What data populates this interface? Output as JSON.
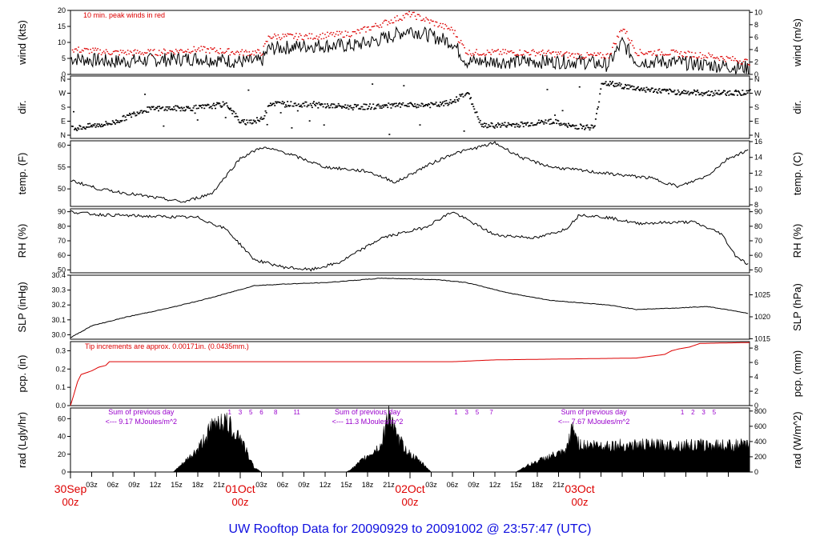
{
  "footer_title": "UW Rooftop Data for 20090929  to  20091002 @ 23:57:47  (UTC)",
  "colors": {
    "accent_red": "#dd0000",
    "footer_blue": "#1010e0",
    "annot_purple": "#9900cc",
    "ink": "#000000"
  },
  "chart_data": [
    {
      "type": "line",
      "key": "wind",
      "ylabel_left": "wind (kts)",
      "ylabel_right": "wind (m/s)",
      "ylim": [
        0,
        20
      ],
      "yticks_left": [
        "0",
        "5",
        "10",
        "15",
        "20"
      ],
      "ylim_right": [
        0,
        10.3
      ],
      "yticks_right": [
        "0",
        "2",
        "4",
        "6",
        "8",
        "10"
      ],
      "annotation": "10 min. peak winds in red",
      "series": [
        {
          "values_hours": [
            [
              0,
              5
            ],
            [
              6,
              4
            ],
            [
              12,
              4.5
            ],
            [
              18,
              5
            ],
            [
              24,
              4
            ],
            [
              27,
              4
            ],
            [
              28,
              8
            ],
            [
              34,
              9
            ],
            [
              40,
              9
            ],
            [
              44,
              11
            ],
            [
              48,
              14
            ],
            [
              54,
              10
            ],
            [
              56,
              4
            ],
            [
              60,
              4
            ],
            [
              66,
              4
            ],
            [
              72,
              4
            ],
            [
              76,
              3
            ],
            [
              78,
              10
            ],
            [
              80,
              4
            ],
            [
              84,
              4
            ],
            [
              90,
              3
            ],
            [
              96,
              2
            ]
          ]
        },
        {
          "peak_hours": [
            [
              0,
              8
            ],
            [
              6,
              7
            ],
            [
              12,
              7
            ],
            [
              18,
              8
            ],
            [
              24,
              7
            ],
            [
              27,
              7
            ],
            [
              28,
              12
            ],
            [
              34,
              12
            ],
            [
              40,
              13
            ],
            [
              44,
              16
            ],
            [
              48,
              19
            ],
            [
              54,
              14
            ],
            [
              56,
              7
            ],
            [
              60,
              7
            ],
            [
              66,
              7
            ],
            [
              72,
              6
            ],
            [
              76,
              6
            ],
            [
              78,
              15
            ],
            [
              80,
              7
            ],
            [
              84,
              7
            ],
            [
              90,
              6
            ],
            [
              96,
              4
            ]
          ]
        }
      ]
    },
    {
      "type": "scatter",
      "key": "dir",
      "ylabel_left": "dir.",
      "ylabel_right": "dir.",
      "yticks": [
        "N",
        "W",
        "S",
        "E",
        "N"
      ],
      "points_hours_deg": [
        [
          0,
          40
        ],
        [
          6,
          80
        ],
        [
          10,
          160
        ],
        [
          12,
          170
        ],
        [
          18,
          175
        ],
        [
          22,
          200
        ],
        [
          24,
          80
        ],
        [
          27,
          100
        ],
        [
          28,
          205
        ],
        [
          34,
          195
        ],
        [
          40,
          180
        ],
        [
          46,
          190
        ],
        [
          52,
          195
        ],
        [
          54,
          215
        ],
        [
          56,
          280
        ],
        [
          58,
          60
        ],
        [
          64,
          70
        ],
        [
          68,
          90
        ],
        [
          70,
          60
        ],
        [
          74,
          50
        ],
        [
          75,
          340
        ],
        [
          80,
          300
        ],
        [
          84,
          280
        ],
        [
          90,
          270
        ],
        [
          96,
          275
        ]
      ]
    },
    {
      "type": "line",
      "key": "temp",
      "ylabel_left": "temp. (F)",
      "ylabel_right": "temp. (C)",
      "ylim": [
        46,
        61
      ],
      "yticks_left": [
        "50",
        "55",
        "60"
      ],
      "ylim_right": [
        7.8,
        16.1
      ],
      "yticks_right": [
        "8",
        "10",
        "12",
        "14",
        "16"
      ],
      "values_hours": [
        [
          0,
          52
        ],
        [
          4,
          50
        ],
        [
          10,
          48.5
        ],
        [
          16,
          47
        ],
        [
          20,
          49
        ],
        [
          22,
          53
        ],
        [
          24,
          57
        ],
        [
          27,
          59.5
        ],
        [
          30,
          58.5
        ],
        [
          36,
          55
        ],
        [
          42,
          54
        ],
        [
          46,
          51.5
        ],
        [
          50,
          55
        ],
        [
          54,
          58
        ],
        [
          60,
          60.5
        ],
        [
          64,
          57
        ],
        [
          68,
          55
        ],
        [
          76,
          53.5
        ],
        [
          82,
          52.5
        ],
        [
          86,
          50.5
        ],
        [
          90,
          53
        ],
        [
          93,
          57
        ],
        [
          96,
          59
        ]
      ]
    },
    {
      "type": "line",
      "key": "rh",
      "ylabel_left": "RH (%)",
      "ylabel_right": "RH (%)",
      "ylim": [
        48,
        92
      ],
      "yticks": [
        "50",
        "60",
        "70",
        "80",
        "90"
      ],
      "values_hours": [
        [
          0,
          90
        ],
        [
          4,
          88
        ],
        [
          10,
          87
        ],
        [
          18,
          86
        ],
        [
          22,
          78
        ],
        [
          26,
          57
        ],
        [
          30,
          52
        ],
        [
          34,
          50
        ],
        [
          38,
          55
        ],
        [
          44,
          72
        ],
        [
          50,
          79
        ],
        [
          54,
          90
        ],
        [
          60,
          74
        ],
        [
          66,
          72
        ],
        [
          70,
          78
        ],
        [
          72,
          88
        ],
        [
          76,
          86
        ],
        [
          80,
          82
        ],
        [
          88,
          83
        ],
        [
          92,
          75
        ],
        [
          94,
          60
        ],
        [
          96,
          53
        ]
      ]
    },
    {
      "type": "line",
      "key": "slp",
      "ylabel_left": "SLP (inHg)",
      "ylabel_right": "SLP (hPa)",
      "ylim": [
        29.97,
        30.4
      ],
      "yticks_left": [
        "30.0",
        "30.1",
        "30.2",
        "30.3",
        "30.4"
      ],
      "yticks_right": [
        "1015",
        "1020",
        "1025"
      ],
      "values_hours": [
        [
          0,
          29.98
        ],
        [
          3,
          30.06
        ],
        [
          8,
          30.12
        ],
        [
          14,
          30.18
        ],
        [
          20,
          30.25
        ],
        [
          26,
          30.33
        ],
        [
          30,
          30.34
        ],
        [
          36,
          30.35
        ],
        [
          44,
          30.38
        ],
        [
          52,
          30.37
        ],
        [
          56,
          30.35
        ],
        [
          62,
          30.28
        ],
        [
          68,
          30.23
        ],
        [
          76,
          30.2
        ],
        [
          80,
          30.17
        ],
        [
          86,
          30.18
        ],
        [
          90,
          30.19
        ],
        [
          94,
          30.16
        ],
        [
          96,
          30.14
        ]
      ]
    },
    {
      "type": "line",
      "key": "pcp",
      "ylabel_left": "pcp. (in)",
      "ylabel_right": "pcp. (mm)",
      "ylim": [
        0,
        0.35
      ],
      "yticks_left": [
        "0.0",
        "0.1",
        "0.2",
        "0.3"
      ],
      "ylim_right": [
        0,
        8.9
      ],
      "yticks_right": [
        "0",
        "2",
        "4",
        "6",
        "8"
      ],
      "annotation": "Tip increments are approx. 0.00171in. (0.0435mm.)",
      "values_hours": [
        [
          0,
          0
        ],
        [
          0.4,
          0.05
        ],
        [
          1,
          0.13
        ],
        [
          1.5,
          0.17
        ],
        [
          3,
          0.19
        ],
        [
          4,
          0.21
        ],
        [
          5,
          0.22
        ],
        [
          5.5,
          0.24
        ],
        [
          36,
          0.24
        ],
        [
          54,
          0.24
        ],
        [
          60,
          0.25
        ],
        [
          80,
          0.26
        ],
        [
          84,
          0.28
        ],
        [
          85,
          0.3
        ],
        [
          86,
          0.31
        ],
        [
          87.5,
          0.32
        ],
        [
          89,
          0.34
        ],
        [
          96,
          0.345
        ]
      ]
    },
    {
      "type": "area",
      "key": "rad",
      "ylabel_left": "rad (Lgly/hr)",
      "ylabel_right": "rad (W/m^2)",
      "ylim": [
        0,
        72
      ],
      "yticks_left": [
        "0",
        "20",
        "40",
        "60"
      ],
      "ylim_right": [
        0,
        840
      ],
      "yticks_right": [
        "0",
        "200",
        "400",
        "600",
        "800"
      ],
      "daily_notes": [
        {
          "line1": "Sum of previous day",
          "line2": "<--- 9.17 MJoules/m^2",
          "hour_labels": [
            "1",
            "3",
            "5",
            "6",
            "8",
            "11"
          ]
        },
        {
          "line1": "Sum of previous day",
          "line2": "<--- 11.3 MJoules/m^2",
          "hour_labels": [
            "1",
            "3",
            "5",
            "7"
          ]
        },
        {
          "line1": "Sum of previous day",
          "line2": "<--- 7.67 MJoules/m^2",
          "hour_labels": [
            "1",
            "2",
            "3",
            "5"
          ]
        }
      ],
      "values_hours": [
        [
          0,
          0
        ],
        [
          14.5,
          0
        ],
        [
          16,
          10
        ],
        [
          18,
          25
        ],
        [
          20,
          50
        ],
        [
          21,
          60
        ],
        [
          22,
          55
        ],
        [
          24,
          40
        ],
        [
          25,
          20
        ],
        [
          26,
          5
        ],
        [
          27,
          0
        ],
        [
          39,
          0
        ],
        [
          40,
          5
        ],
        [
          42,
          18
        ],
        [
          44,
          30
        ],
        [
          45,
          70
        ],
        [
          46,
          40
        ],
        [
          48,
          20
        ],
        [
          50,
          8
        ],
        [
          51,
          0
        ],
        [
          63,
          0
        ],
        [
          64,
          5
        ],
        [
          66,
          12
        ],
        [
          68,
          18
        ],
        [
          70,
          22
        ],
        [
          71,
          50
        ],
        [
          72,
          30
        ]
      ]
    }
  ],
  "x_axis": {
    "hour_ticks": [
      "03z",
      "06z",
      "09z",
      "12z",
      "15z",
      "18z",
      "21z",
      "03z",
      "06z",
      "09z",
      "12z",
      "15z",
      "18z",
      "21z",
      "03z",
      "06z",
      "09z",
      "12z",
      "15z",
      "18z",
      "21z"
    ],
    "day_labels": [
      {
        "date": "30Sep",
        "time": "00z"
      },
      {
        "date": "01Oct",
        "time": "00z"
      },
      {
        "date": "02Oct",
        "time": "00z"
      },
      {
        "date": "03Oct",
        "time": "00z"
      }
    ]
  }
}
